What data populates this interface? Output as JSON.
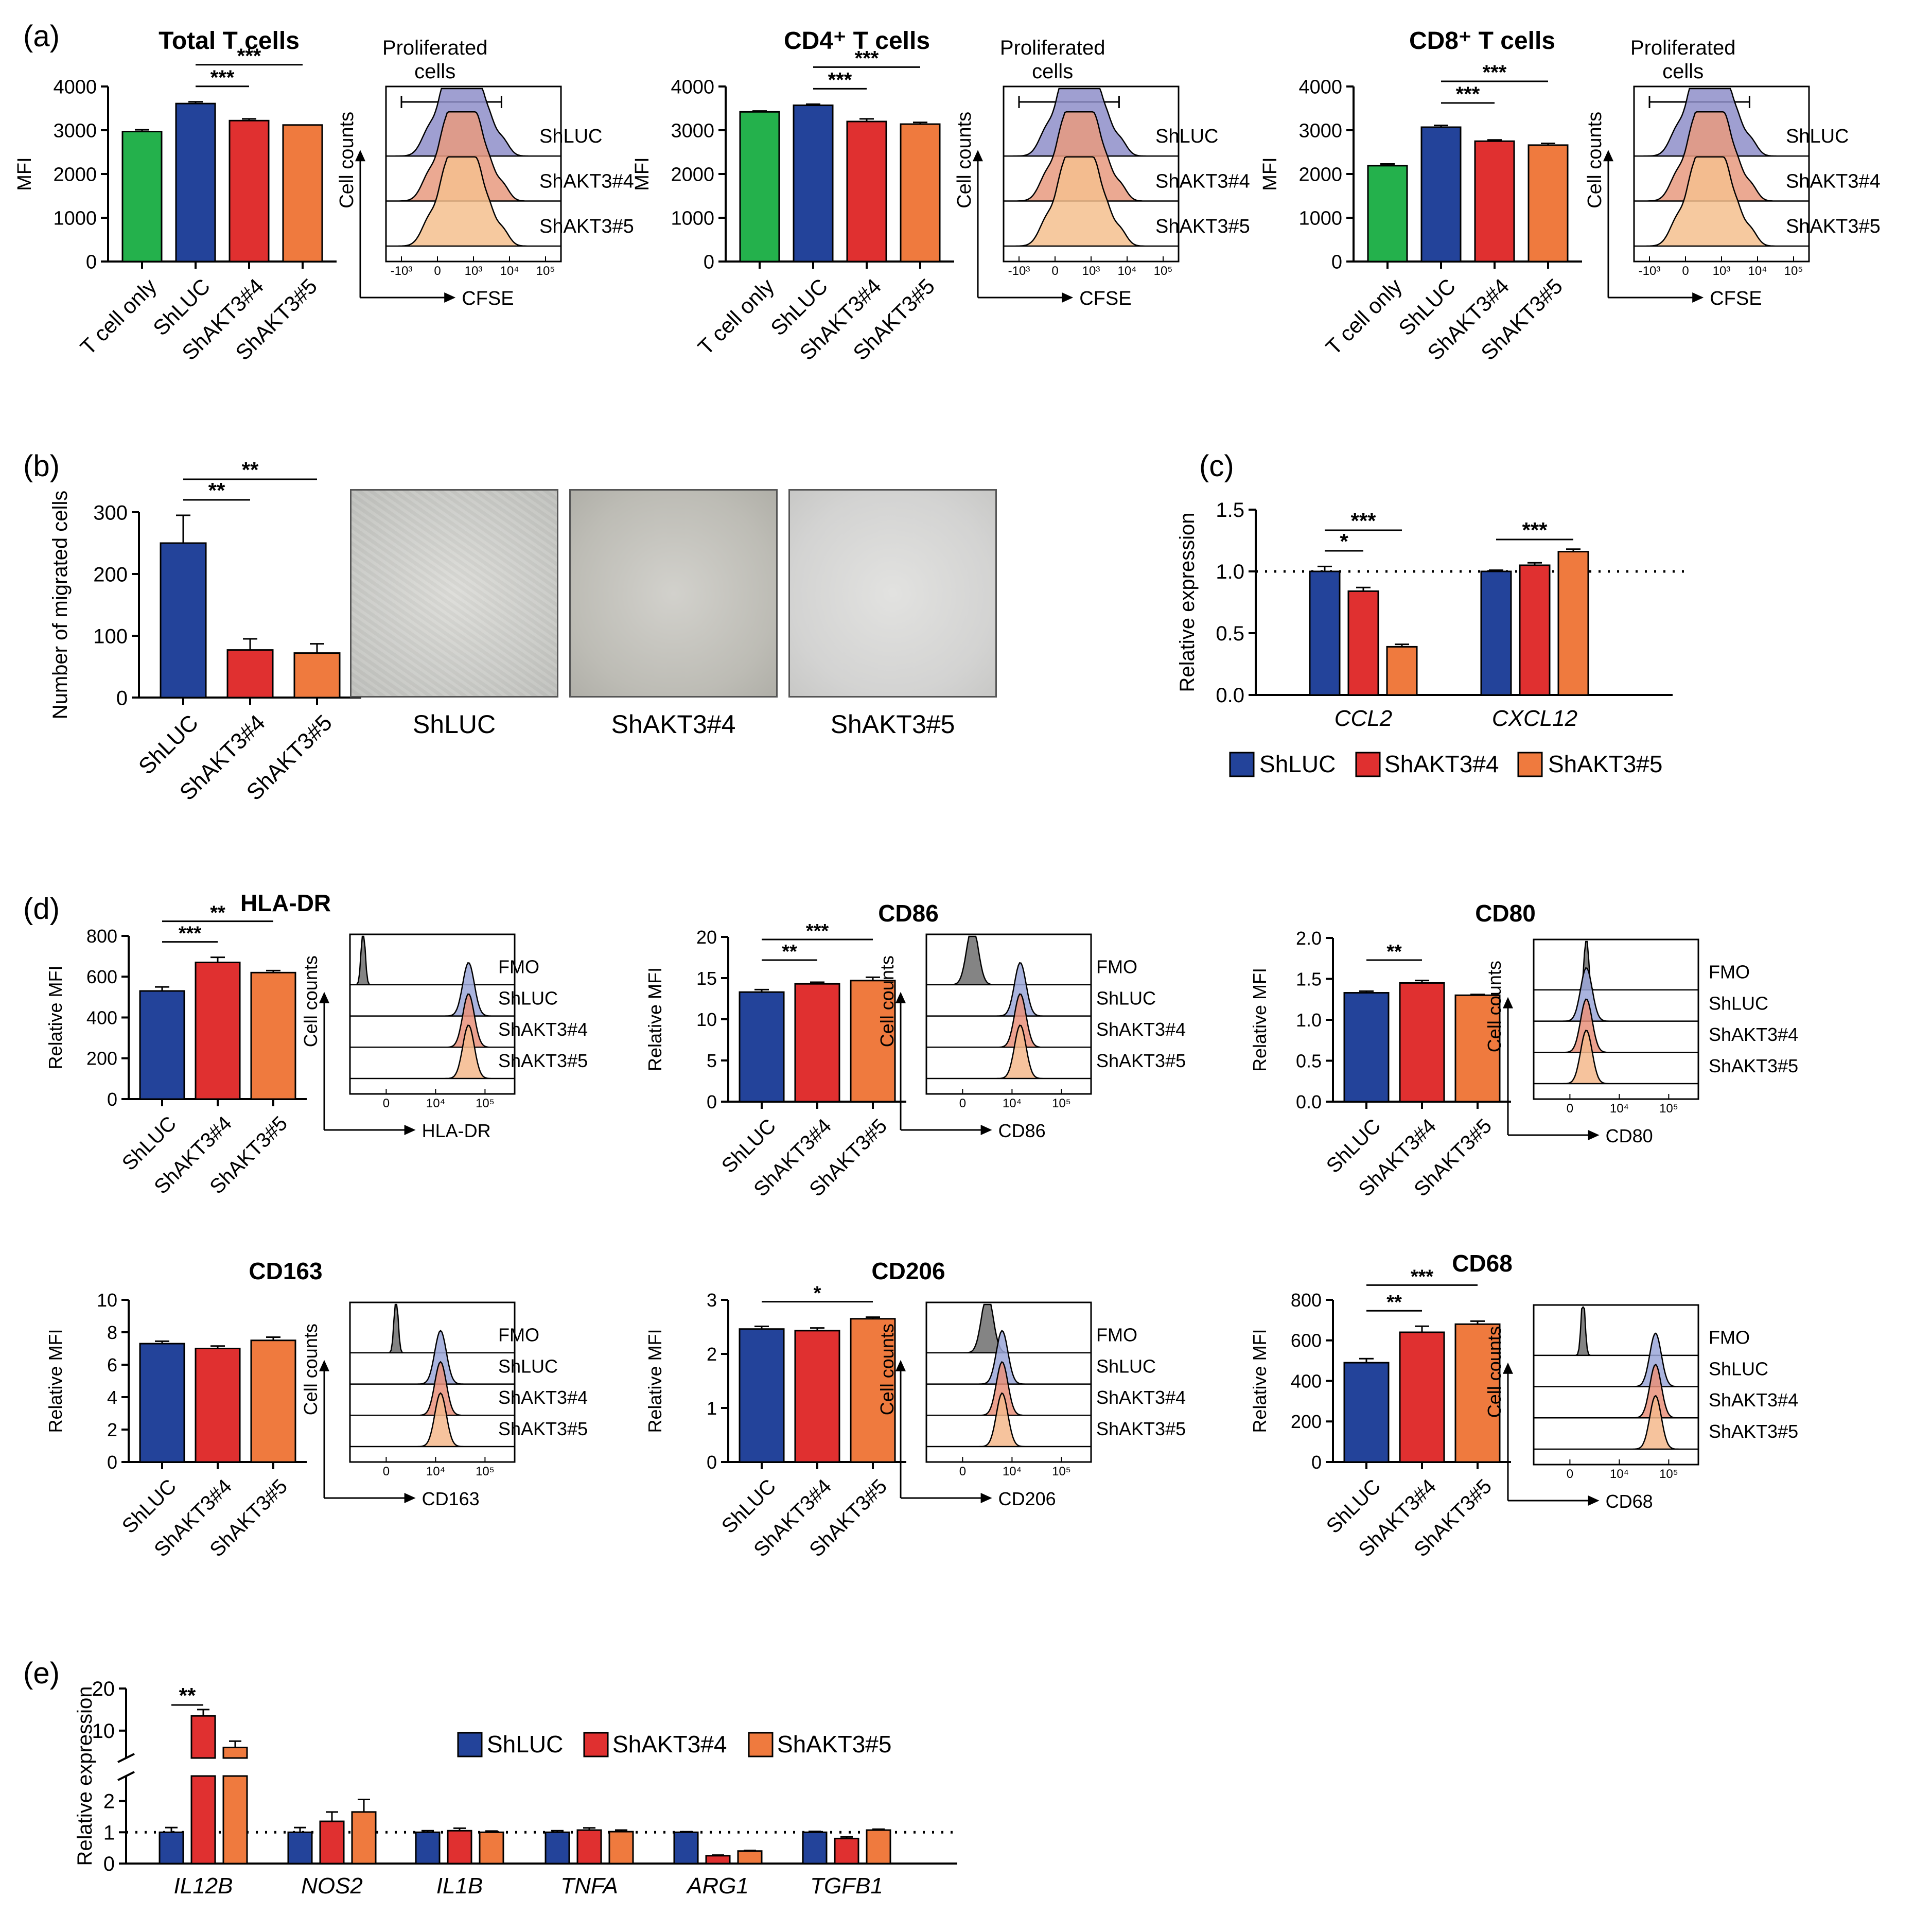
{
  "colors": {
    "shluc": "#23439a",
    "akt4": "#e03030",
    "akt5": "#ef7a3e",
    "tonly": "#24b14c",
    "fmo": "#7f7f7f",
    "axis": "#000000"
  },
  "panels": {
    "a": "(a)",
    "b": "(b)",
    "c": "(c)",
    "d": "(d)",
    "e": "(e)"
  },
  "chart_data": [
    {
      "id": "a1",
      "type": "bar",
      "title": "Total T cells",
      "ylabel": "MFI",
      "ylim": [
        0,
        4000
      ],
      "yticks": [
        0,
        1000,
        2000,
        3000,
        4000
      ],
      "categories": [
        "T cell only",
        "ShLUC",
        "ShAKT3#4",
        "ShAKT3#5"
      ],
      "values": [
        2970,
        3610,
        3220,
        3120
      ],
      "errors": [
        40,
        40,
        40,
        0
      ],
      "sig": [
        {
          "from": 1,
          "to": 2,
          "label": "***"
        },
        {
          "from": 1,
          "to": 3,
          "label": "***"
        }
      ]
    },
    {
      "id": "a2",
      "type": "bar",
      "title": "CD4⁺ T cells",
      "ylabel": "MFI",
      "ylim": [
        0,
        4000
      ],
      "yticks": [
        0,
        1000,
        2000,
        3000,
        4000
      ],
      "categories": [
        "T cell only",
        "ShLUC",
        "ShAKT3#4",
        "ShAKT3#5"
      ],
      "values": [
        3420,
        3570,
        3200,
        3140
      ],
      "errors": [
        20,
        25,
        60,
        40
      ],
      "sig": [
        {
          "from": 1,
          "to": 2,
          "label": "***"
        },
        {
          "from": 1,
          "to": 3,
          "label": "***"
        }
      ]
    },
    {
      "id": "a3",
      "type": "bar",
      "title": "CD8⁺ T cells",
      "ylabel": "MFI",
      "ylim": [
        0,
        4000
      ],
      "yticks": [
        0,
        1000,
        2000,
        3000,
        4000
      ],
      "categories": [
        "T cell only",
        "ShLUC",
        "ShAKT3#4",
        "ShAKT3#5"
      ],
      "values": [
        2190,
        3070,
        2750,
        2660
      ],
      "errors": [
        40,
        40,
        30,
        40
      ],
      "sig": [
        {
          "from": 1,
          "to": 2,
          "label": "***"
        },
        {
          "from": 1,
          "to": 3,
          "label": "***"
        }
      ]
    },
    {
      "id": "b",
      "type": "bar",
      "title": "",
      "ylabel": "Number of migrated cells",
      "ylim": [
        0,
        300
      ],
      "yticks": [
        0,
        100,
        200,
        300
      ],
      "categories": [
        "ShLUC",
        "ShAKT3#4",
        "ShAKT3#5"
      ],
      "values": [
        250,
        77,
        72
      ],
      "errors": [
        45,
        18,
        15
      ],
      "sig": [
        {
          "from": 0,
          "to": 1,
          "label": "**"
        },
        {
          "from": 0,
          "to": 2,
          "label": "**"
        }
      ]
    },
    {
      "id": "c",
      "type": "bar",
      "title": "",
      "ylabel": "Relative expression",
      "ylim": [
        0,
        1.5
      ],
      "yticks": [
        0.0,
        0.5,
        1.0,
        1.5
      ],
      "refline": 1.0,
      "groups": [
        "CCL2",
        "CXCL12"
      ],
      "series": [
        {
          "name": "ShLUC",
          "values": [
            1.0,
            1.0
          ],
          "errors": [
            0.04,
            0.01
          ]
        },
        {
          "name": "ShAKT3#4",
          "values": [
            0.84,
            1.05
          ],
          "errors": [
            0.03,
            0.02
          ]
        },
        {
          "name": "ShAKT3#5",
          "values": [
            0.39,
            1.16
          ],
          "errors": [
            0.02,
            0.02
          ]
        }
      ],
      "sig": [
        {
          "group": 0,
          "from": 0,
          "to": 1,
          "label": "*"
        },
        {
          "group": 0,
          "from": 0,
          "to": 2,
          "label": "***"
        },
        {
          "group": 1,
          "from": 0,
          "to": 2,
          "label": "***"
        }
      ]
    },
    {
      "id": "d1",
      "type": "bar",
      "title": "HLA-DR",
      "ylabel": "Relative MFI",
      "ylim": [
        0,
        800
      ],
      "yticks": [
        0,
        200,
        400,
        600,
        800
      ],
      "categories": [
        "ShLUC",
        "ShAKT3#4",
        "ShAKT3#5"
      ],
      "values": [
        530,
        670,
        620
      ],
      "errors": [
        20,
        25,
        10
      ],
      "sig": [
        {
          "from": 0,
          "to": 1,
          "label": "***"
        },
        {
          "from": 0,
          "to": 2,
          "label": "**"
        }
      ]
    },
    {
      "id": "d2",
      "type": "bar",
      "title": "CD86",
      "ylabel": "Relative MFI",
      "ylim": [
        0,
        20
      ],
      "yticks": [
        0,
        5,
        10,
        15,
        20
      ],
      "categories": [
        "ShLUC",
        "ShAKT3#4",
        "ShAKT3#5"
      ],
      "values": [
        13.3,
        14.3,
        14.7
      ],
      "errors": [
        0.3,
        0.2,
        0.4
      ],
      "sig": [
        {
          "from": 0,
          "to": 1,
          "label": "**"
        },
        {
          "from": 0,
          "to": 2,
          "label": "***"
        }
      ]
    },
    {
      "id": "d3",
      "type": "bar",
      "title": "CD80",
      "ylabel": "Relative MFI",
      "ylim": [
        0,
        2.0
      ],
      "yticks": [
        0.0,
        0.5,
        1.0,
        1.5,
        2.0
      ],
      "categories": [
        "ShLUC",
        "ShAKT3#4",
        "ShAKT3#5"
      ],
      "values": [
        1.33,
        1.45,
        1.3
      ],
      "errors": [
        0.02,
        0.03,
        0.01
      ],
      "sig": [
        {
          "from": 0,
          "to": 1,
          "label": "**"
        }
      ]
    },
    {
      "id": "d4",
      "type": "bar",
      "title": "CD163",
      "ylabel": "Relative MFI",
      "ylim": [
        0,
        10
      ],
      "yticks": [
        0,
        2,
        4,
        6,
        8,
        10
      ],
      "categories": [
        "ShLUC",
        "ShAKT3#4",
        "ShAKT3#5"
      ],
      "values": [
        7.3,
        7.0,
        7.5
      ],
      "errors": [
        0.15,
        0.15,
        0.2
      ],
      "sig": []
    },
    {
      "id": "d5",
      "type": "bar",
      "title": "CD206",
      "ylabel": "Relative MFI",
      "ylim": [
        0,
        3
      ],
      "yticks": [
        0,
        1,
        2,
        3
      ],
      "categories": [
        "ShLUC",
        "ShAKT3#4",
        "ShAKT3#5"
      ],
      "values": [
        2.46,
        2.43,
        2.65
      ],
      "errors": [
        0.05,
        0.05,
        0.03
      ],
      "sig": [
        {
          "from": 0,
          "to": 2,
          "label": "*"
        }
      ]
    },
    {
      "id": "d6",
      "type": "bar",
      "title": "CD68",
      "ylabel": "Relative MFI",
      "ylim": [
        0,
        800
      ],
      "yticks": [
        0,
        200,
        400,
        600,
        800
      ],
      "categories": [
        "ShLUC",
        "ShAKT3#4",
        "ShAKT3#5"
      ],
      "values": [
        490,
        640,
        680
      ],
      "errors": [
        20,
        30,
        15
      ],
      "sig": [
        {
          "from": 0,
          "to": 1,
          "label": "**"
        },
        {
          "from": 0,
          "to": 2,
          "label": "***"
        }
      ]
    },
    {
      "id": "e",
      "type": "bar",
      "title": "",
      "ylabel": "Relative expression",
      "broken_axis": true,
      "ylim_lower": [
        0,
        2.8
      ],
      "yticks_lower": [
        0,
        1,
        2
      ],
      "ylim_upper": [
        3.5,
        20
      ],
      "yticks_upper": [
        10,
        20
      ],
      "refline": 1.0,
      "groups": [
        "IL12B",
        "NOS2",
        "IL1B",
        "TNFA",
        "ARG1",
        "TGFB1"
      ],
      "series": [
        {
          "name": "ShLUC",
          "values": [
            1.0,
            1.0,
            1.0,
            1.0,
            1.0,
            1.0
          ],
          "errors": [
            0.15,
            0.15,
            0.05,
            0.05,
            0.02,
            0.03
          ]
        },
        {
          "name": "ShAKT3#4",
          "values": [
            13.5,
            1.35,
            1.05,
            1.07,
            0.25,
            0.8
          ],
          "errors": [
            1.5,
            0.3,
            0.08,
            0.07,
            0.02,
            0.05
          ]
        },
        {
          "name": "ShAKT3#5",
          "values": [
            6.0,
            1.65,
            1.0,
            1.02,
            0.4,
            1.07
          ],
          "errors": [
            1.5,
            0.4,
            0.04,
            0.05,
            0.02,
            0.03
          ]
        }
      ],
      "sig": [
        {
          "group": 0,
          "from": 0,
          "to": 1,
          "label": "**"
        }
      ]
    }
  ],
  "flow_plots": [
    {
      "id": "fa1",
      "title": "Proliferated cells",
      "ylabel": "Cell counts",
      "xlabel": "CFSE",
      "gate": true,
      "style": "cfse",
      "xticks": [
        "-10³",
        "0",
        "10³",
        "10⁴",
        "10⁵"
      ],
      "labels": [
        "ShLUC",
        "ShAKT3#4",
        "ShAKT3#5"
      ]
    },
    {
      "id": "fa2",
      "title": "Proliferated cells",
      "ylabel": "Cell counts",
      "xlabel": "CFSE",
      "gate": true,
      "style": "cfse",
      "xticks": [
        "-10³",
        "0",
        "10³",
        "10⁴",
        "10⁵"
      ],
      "labels": [
        "ShLUC",
        "ShAKT3#4",
        "ShAKT3#5"
      ]
    },
    {
      "id": "fa3",
      "title": "Proliferated cells",
      "ylabel": "Cell counts",
      "xlabel": "CFSE",
      "gate": true,
      "style": "cfse",
      "xticks": [
        "-10³",
        "0",
        "10³",
        "10⁴",
        "10⁵"
      ],
      "labels": [
        "ShLUC",
        "ShAKT3#4",
        "ShAKT3#5"
      ]
    },
    {
      "id": "fd1",
      "title": "",
      "ylabel": "Cell counts",
      "xlabel": "HLA-DR",
      "style": "peak",
      "peak": 0.72,
      "fmo": 0.08,
      "xticks": [
        "0",
        "10⁴",
        "10⁵"
      ],
      "labels": [
        "FMO",
        "ShLUC",
        "ShAKT3#4",
        "ShAKT3#5"
      ]
    },
    {
      "id": "fd2",
      "title": "",
      "ylabel": "Cell counts",
      "xlabel": "CD86",
      "style": "peak",
      "peak": 0.57,
      "fmo": 0.28,
      "fmoWide": true,
      "xticks": [
        "0",
        "10⁴",
        "10⁵"
      ],
      "labels": [
        "FMO",
        "ShLUC",
        "ShAKT3#4",
        "ShAKT3#5"
      ]
    },
    {
      "id": "fd3",
      "title": "",
      "ylabel": "Cell counts",
      "xlabel": "CD80",
      "style": "peak",
      "peak": 0.32,
      "fmo": 0.32,
      "xticks": [
        "0",
        "10⁴",
        "10⁵"
      ],
      "labels": [
        "FMO",
        "ShLUC",
        "ShAKT3#4",
        "ShAKT3#5"
      ]
    },
    {
      "id": "fd4",
      "title": "",
      "ylabel": "Cell counts",
      "xlabel": "CD163",
      "style": "peak",
      "peak": 0.55,
      "fmo": 0.28,
      "xticks": [
        "0",
        "10⁴",
        "10⁵"
      ],
      "labels": [
        "FMO",
        "ShLUC",
        "ShAKT3#4",
        "ShAKT3#5"
      ]
    },
    {
      "id": "fd5",
      "title": "",
      "ylabel": "Cell counts",
      "xlabel": "CD206",
      "style": "peak",
      "peak": 0.46,
      "fmo": 0.37,
      "fmoWide": true,
      "xticks": [
        "0",
        "10⁴",
        "10⁵"
      ],
      "labels": [
        "FMO",
        "ShLUC",
        "ShAKT3#4",
        "ShAKT3#5"
      ]
    },
    {
      "id": "fd6",
      "title": "",
      "ylabel": "Cell counts",
      "xlabel": "CD68",
      "style": "peak",
      "peak": 0.74,
      "fmo": 0.3,
      "xticks": [
        "0",
        "10⁴",
        "10⁵"
      ],
      "labels": [
        "FMO",
        "ShLUC",
        "ShAKT3#4",
        "ShAKT3#5"
      ]
    }
  ],
  "micrographs": [
    "ShLUC",
    "ShAKT3#4",
    "ShAKT3#5"
  ],
  "legends": [
    [
      "ShLUC",
      "ShAKT3#4",
      "ShAKT3#5"
    ],
    [
      "ShLUC",
      "ShAKT3#4",
      "ShAKT3#5"
    ]
  ]
}
